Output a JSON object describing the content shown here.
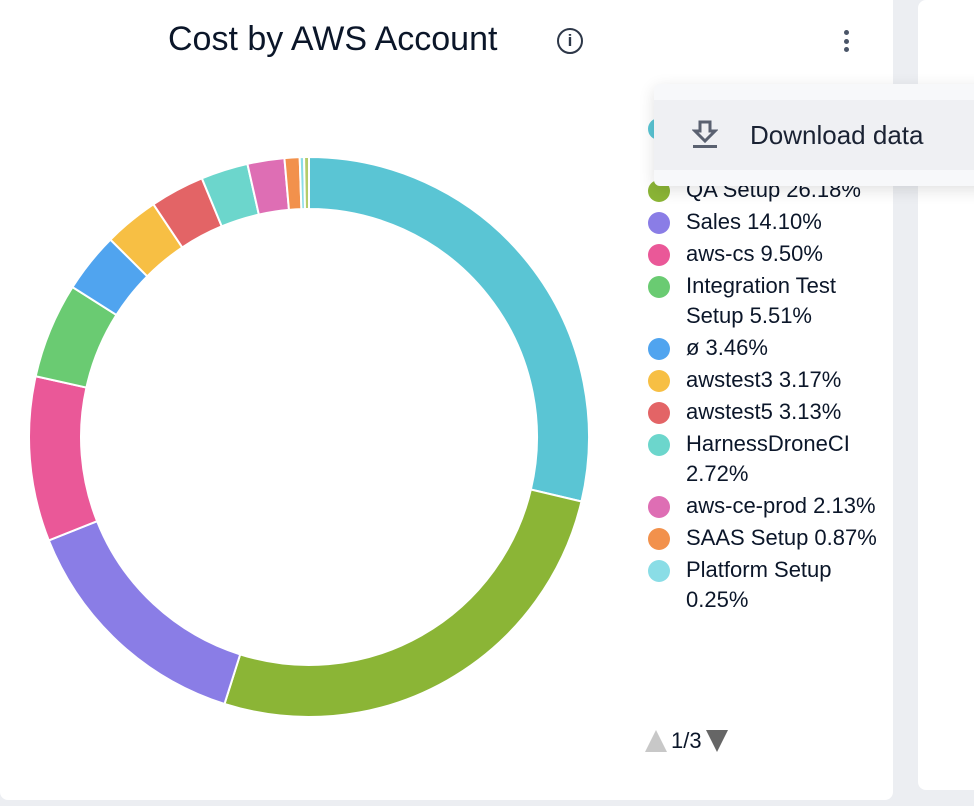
{
  "card": {
    "title": "Cost by AWS Account",
    "info_icon": "info-icon",
    "menu_icon": "kebab-icon"
  },
  "menu": {
    "items": [
      {
        "label": "Download data",
        "icon": "download-icon"
      }
    ]
  },
  "legend": {
    "items": [
      {
        "label": "",
        "color": "#5ac5d4"
      },
      {
        "label": "QA Setup 26.18%",
        "color": "#8bb536"
      },
      {
        "label": "Sales 14.10%",
        "color": "#8a7de6"
      },
      {
        "label": "aws-cs 9.50%",
        "color": "#ea5898"
      },
      {
        "label": "Integration Test Setup 5.51%",
        "color": "#6acb72"
      },
      {
        "label": "ø 3.46%",
        "color": "#50a4ef"
      },
      {
        "label": "awstest3 3.17%",
        "color": "#f7bf44"
      },
      {
        "label": "awstest5 3.13%",
        "color": "#e36466"
      },
      {
        "label": "HarnessDroneCI 2.72%",
        "color": "#6cd6cc"
      },
      {
        "label": "aws-ce-prod 2.13%",
        "color": "#de6eb4"
      },
      {
        "label": "SAAS Setup 0.87%",
        "color": "#f2914c"
      },
      {
        "label": "Platform Setup 0.25%",
        "color": "#8adde6"
      }
    ],
    "pager": "1/3"
  },
  "chart_data": {
    "type": "pie",
    "title": "Cost by AWS Account",
    "donut": true,
    "categories": [
      "",
      "QA Setup",
      "Sales",
      "aws-cs",
      "Integration Test Setup",
      "ø",
      "awstest3",
      "awstest5",
      "HarnessDroneCI",
      "aws-ce-prod",
      "SAAS Setup",
      "Platform Setup",
      ""
    ],
    "values": [
      28.7,
      26.18,
      14.1,
      9.5,
      5.51,
      3.46,
      3.17,
      3.13,
      2.72,
      2.13,
      0.87,
      0.25,
      0.28
    ],
    "colors": [
      "#5ac5d4",
      "#8bb536",
      "#8a7de6",
      "#ea5898",
      "#6acb72",
      "#50a4ef",
      "#f7bf44",
      "#e36466",
      "#6cd6cc",
      "#de6eb4",
      "#f2914c",
      "#8adde6",
      "#b5cc6a"
    ],
    "legend_position": "right"
  }
}
